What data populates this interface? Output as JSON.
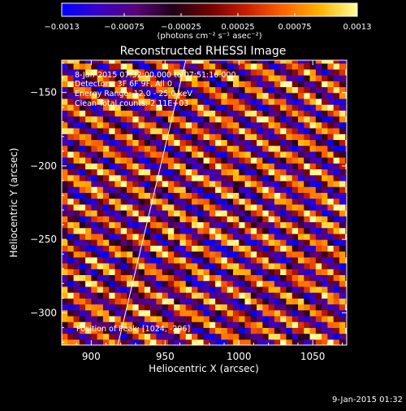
{
  "colorbar": {
    "ticks": [
      {
        "value": -0.0013,
        "label": "−0.0013"
      },
      {
        "value": -0.00075,
        "label": "−0.00075"
      },
      {
        "value": -0.00025,
        "label": "−0.00025"
      },
      {
        "value": 0.00025,
        "label": "0.00025"
      },
      {
        "value": 0.00075,
        "label": "0.00075"
      },
      {
        "value": 0.0013,
        "label": "0.0013"
      }
    ],
    "range": [
      -0.0013,
      0.0013
    ],
    "units_label": "(photons cm⁻² s⁻¹ asec⁻²)"
  },
  "colors": {
    "background": "#000000",
    "text": "#ffffff",
    "limb_line": "#ffffff",
    "colormap": [
      "#0000ff",
      "#3a00c8",
      "#5a0078",
      "#200018",
      "#700000",
      "#c81e00",
      "#ff6400",
      "#ffb400",
      "#ffff9b"
    ]
  },
  "chart_data": {
    "type": "heatmap",
    "title": "Reconstructed RHESSI Image",
    "xlabel": "Heliocentric X (arcsec)",
    "ylabel": "Heliocentric Y (arcsec)",
    "xlim": [
      880,
      1073
    ],
    "ylim": [
      -322,
      -128
    ],
    "x_ticks": [
      {
        "value": 900,
        "label": "900"
      },
      {
        "value": 950,
        "label": "950"
      },
      {
        "value": 1000,
        "label": "1000"
      },
      {
        "value": 1050,
        "label": "1050"
      }
    ],
    "y_ticks": [
      {
        "value": -150,
        "label": "−150"
      },
      {
        "value": -200,
        "label": "−200"
      },
      {
        "value": -250,
        "label": "−250"
      },
      {
        "value": -300,
        "label": "−300"
      }
    ],
    "pattern": {
      "description": "diagonal modulation stripes",
      "pixel_size_arcsec": 4,
      "stripe_period_arcsec": 16,
      "stripe_direction": "descending to the right"
    },
    "limb_line": {
      "x": [
        918,
        964
      ],
      "y": [
        -322,
        -128
      ]
    },
    "annotations": [
      "8-Jan-2015 07:32:00.000 to 07:51:16.000",
      "Detectors: 3F 6F 9F, All 0",
      "Energy Range: 12.0 - 25.0 keV",
      "Clean     Total counts: 2.11E+03"
    ],
    "peak_label": "Position of Peak:  [1024, -296]"
  },
  "footer": {
    "timestamp": "9-Jan-2015 01:32"
  }
}
